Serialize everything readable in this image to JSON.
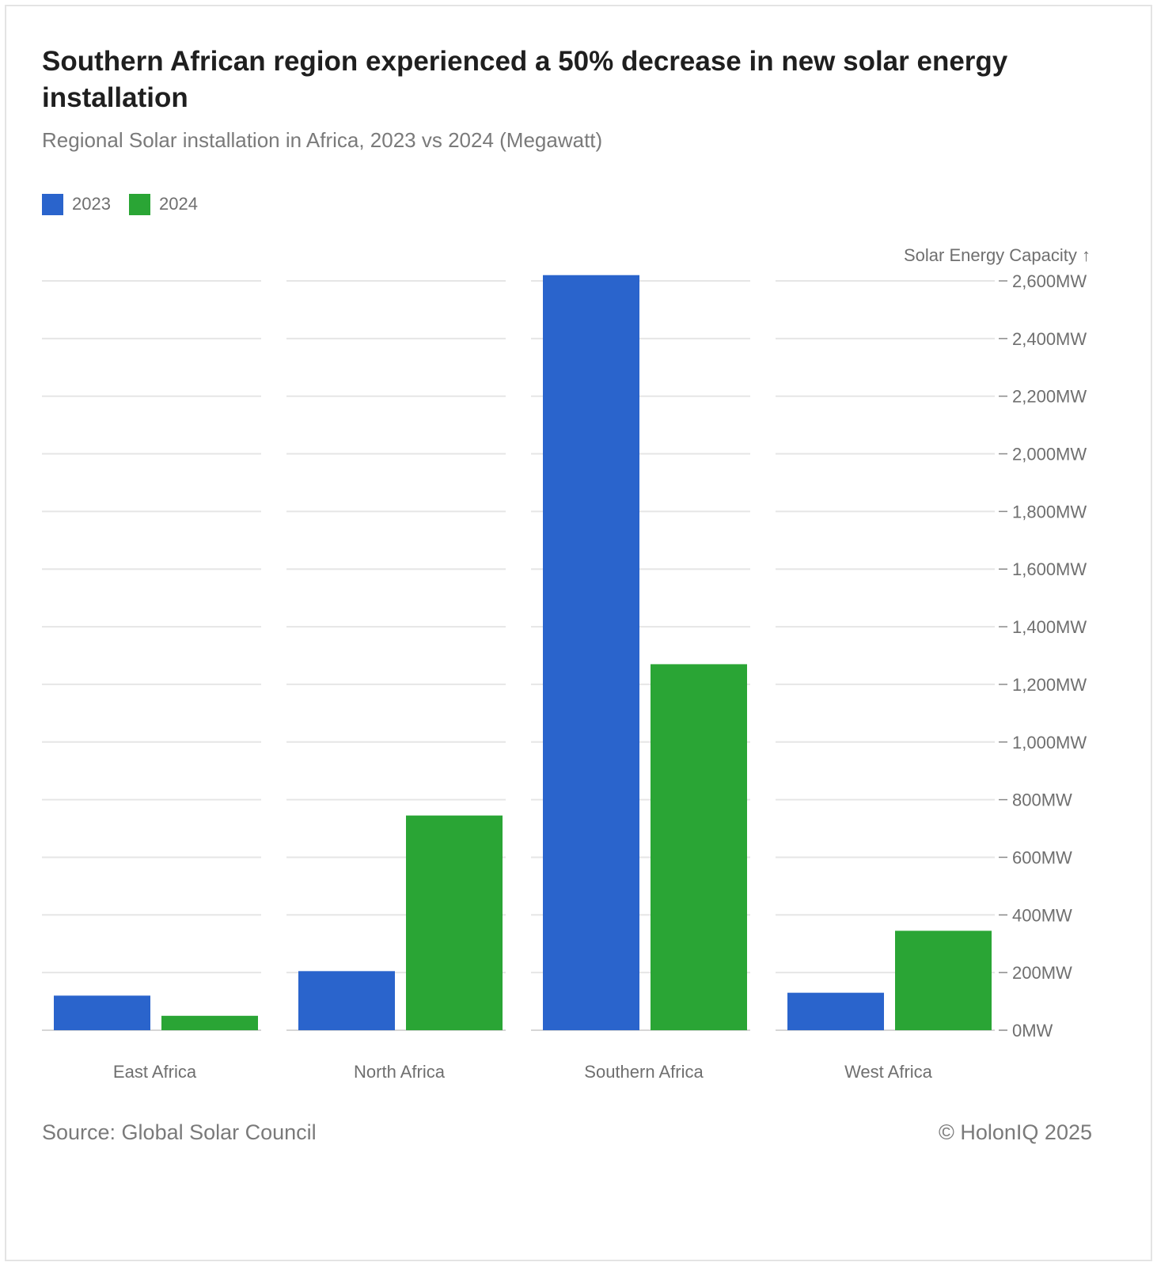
{
  "title": "Southern African region experienced a 50% decrease in new solar energy installation",
  "subtitle": "Regional Solar installation in Africa, 2023 vs 2024 (Megawatt)",
  "source": "Source: Global Solar Council",
  "copyright": "© HolonIQ 2025",
  "legend": [
    {
      "label": "2023",
      "color": "#2a64cc"
    },
    {
      "label": "2024",
      "color": "#2aa535"
    }
  ],
  "chart_data": {
    "type": "bar",
    "title": "Southern African region experienced a 50% decrease in new solar energy installation",
    "subtitle": "Regional Solar installation in Africa, 2023 vs 2024 (Megawatt)",
    "categories": [
      "East Africa",
      "North Africa",
      "Southern Africa",
      "West Africa"
    ],
    "series": [
      {
        "name": "2023",
        "color": "#2a64cc",
        "values": [
          120,
          205,
          2620,
          130
        ]
      },
      {
        "name": "2024",
        "color": "#2aa535",
        "values": [
          50,
          745,
          1270,
          345
        ]
      }
    ],
    "ylabel": "Solar Energy Capacity ↑",
    "ylim": [
      0,
      2600
    ],
    "y_ticks": [
      0,
      200,
      400,
      600,
      800,
      1000,
      1200,
      1400,
      1600,
      1800,
      2000,
      2200,
      2400,
      2600
    ],
    "y_tick_labels": [
      "0MW",
      "200MW",
      "400MW",
      "600MW",
      "800MW",
      "1,000MW",
      "1,200MW",
      "1,400MW",
      "1,600MW",
      "1,800MW",
      "2,000MW",
      "2,200MW",
      "2,400MW",
      "2,600MW"
    ],
    "y_axis_position": "right",
    "grid": true,
    "legend_position": "top-left"
  }
}
